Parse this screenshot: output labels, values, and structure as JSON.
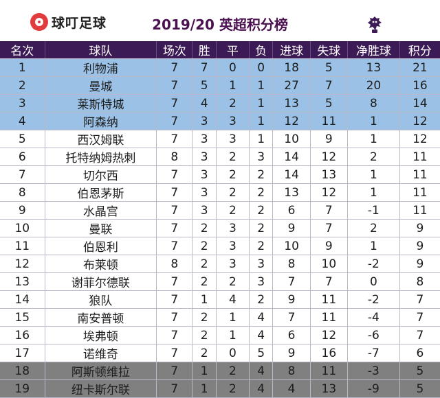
{
  "header": {
    "brand": "球叮足球",
    "title": "2019/20 英超积分榜"
  },
  "columns": [
    "名次",
    "球队",
    "场次",
    "胜",
    "平",
    "负",
    "进球",
    "失球",
    "净胜球",
    "积分"
  ],
  "rows": [
    {
      "rank": "1",
      "team": "利物浦",
      "played": "7",
      "won": "7",
      "drawn": "0",
      "lost": "0",
      "gf": "18",
      "ga": "5",
      "gd": "13",
      "pts": "21",
      "zone": "cl"
    },
    {
      "rank": "2",
      "team": "曼城",
      "played": "7",
      "won": "5",
      "drawn": "1",
      "lost": "1",
      "gf": "27",
      "ga": "7",
      "gd": "20",
      "pts": "16",
      "zone": "cl"
    },
    {
      "rank": "3",
      "team": "莱斯特城",
      "played": "7",
      "won": "4",
      "drawn": "2",
      "lost": "1",
      "gf": "13",
      "ga": "5",
      "gd": "8",
      "pts": "14",
      "zone": "cl"
    },
    {
      "rank": "4",
      "team": "阿森纳",
      "played": "7",
      "won": "3",
      "drawn": "3",
      "lost": "1",
      "gf": "12",
      "ga": "11",
      "gd": "1",
      "pts": "12",
      "zone": "cl"
    },
    {
      "rank": "5",
      "team": "西汉姆联",
      "played": "7",
      "won": "3",
      "drawn": "3",
      "lost": "1",
      "gf": "10",
      "ga": "9",
      "gd": "1",
      "pts": "12",
      "zone": "mid"
    },
    {
      "rank": "6",
      "team": "托特纳姆热刺",
      "played": "8",
      "won": "3",
      "drawn": "2",
      "lost": "3",
      "gf": "14",
      "ga": "12",
      "gd": "2",
      "pts": "11",
      "zone": "mid"
    },
    {
      "rank": "7",
      "team": "切尔西",
      "played": "7",
      "won": "3",
      "drawn": "2",
      "lost": "2",
      "gf": "14",
      "ga": "13",
      "gd": "1",
      "pts": "11",
      "zone": "mid"
    },
    {
      "rank": "8",
      "team": "伯恩茅斯",
      "played": "7",
      "won": "3",
      "drawn": "2",
      "lost": "2",
      "gf": "13",
      "ga": "12",
      "gd": "1",
      "pts": "11",
      "zone": "mid"
    },
    {
      "rank": "9",
      "team": "水晶宫",
      "played": "7",
      "won": "3",
      "drawn": "2",
      "lost": "2",
      "gf": "6",
      "ga": "7",
      "gd": "-1",
      "pts": "11",
      "zone": "mid"
    },
    {
      "rank": "10",
      "team": "曼联",
      "played": "7",
      "won": "2",
      "drawn": "3",
      "lost": "2",
      "gf": "9",
      "ga": "7",
      "gd": "2",
      "pts": "9",
      "zone": "mid"
    },
    {
      "rank": "11",
      "team": "伯恩利",
      "played": "7",
      "won": "2",
      "drawn": "3",
      "lost": "2",
      "gf": "10",
      "ga": "9",
      "gd": "1",
      "pts": "9",
      "zone": "mid"
    },
    {
      "rank": "12",
      "team": "布莱顿",
      "played": "8",
      "won": "2",
      "drawn": "3",
      "lost": "3",
      "gf": "8",
      "ga": "10",
      "gd": "-2",
      "pts": "9",
      "zone": "mid"
    },
    {
      "rank": "13",
      "team": "谢菲尔德联",
      "played": "7",
      "won": "2",
      "drawn": "2",
      "lost": "3",
      "gf": "7",
      "ga": "7",
      "gd": "0",
      "pts": "8",
      "zone": "mid"
    },
    {
      "rank": "14",
      "team": "狼队",
      "played": "7",
      "won": "1",
      "drawn": "4",
      "lost": "2",
      "gf": "9",
      "ga": "11",
      "gd": "-2",
      "pts": "7",
      "zone": "mid"
    },
    {
      "rank": "15",
      "team": "南安普顿",
      "played": "7",
      "won": "2",
      "drawn": "1",
      "lost": "4",
      "gf": "7",
      "ga": "11",
      "gd": "-4",
      "pts": "7",
      "zone": "mid"
    },
    {
      "rank": "16",
      "team": "埃弗顿",
      "played": "7",
      "won": "2",
      "drawn": "1",
      "lost": "4",
      "gf": "6",
      "ga": "12",
      "gd": "-6",
      "pts": "7",
      "zone": "mid"
    },
    {
      "rank": "17",
      "team": "诺维奇",
      "played": "7",
      "won": "2",
      "drawn": "0",
      "lost": "5",
      "gf": "9",
      "ga": "16",
      "gd": "-7",
      "pts": "6",
      "zone": "mid"
    },
    {
      "rank": "18",
      "team": "阿斯顿维拉",
      "played": "7",
      "won": "1",
      "drawn": "2",
      "lost": "4",
      "gf": "8",
      "ga": "11",
      "gd": "-3",
      "pts": "5",
      "zone": "rel"
    },
    {
      "rank": "19",
      "team": "纽卡斯尔联",
      "played": "7",
      "won": "1",
      "drawn": "2",
      "lost": "4",
      "gf": "4",
      "ga": "13",
      "gd": "-9",
      "pts": "5",
      "zone": "rel"
    }
  ],
  "colors": {
    "header_bg": "#3c1a55",
    "cl_zone": "#9bc2e6",
    "relegation_zone": "#808080",
    "title": "#4a1050",
    "brand_red": "#e23b3b"
  }
}
